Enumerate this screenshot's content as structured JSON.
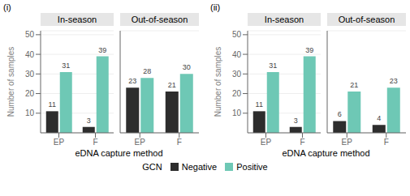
{
  "chart_data": [
    {
      "type": "bar",
      "title": "(i)",
      "xlabel": "eDNA capture method",
      "ylabel": "Number of samples",
      "facets": [
        {
          "title": "In-season",
          "categories": [
            "EP",
            "F"
          ],
          "series": [
            {
              "name": "Negative",
              "color": "#2d2d2d",
              "values": [
                11,
                3
              ]
            },
            {
              "name": "Positive",
              "color": "#6ec8b5",
              "values": [
                31,
                39
              ]
            }
          ],
          "ylim": [
            0,
            52
          ],
          "yticks": [
            10,
            20,
            30,
            40,
            50
          ],
          "data_labels": true
        },
        {
          "title": "Out-of-season",
          "categories": [
            "EP",
            "F"
          ],
          "series": [
            {
              "name": "Negative",
              "color": "#2d2d2d",
              "values": [
                23,
                21
              ]
            },
            {
              "name": "Positive",
              "color": "#6ec8b5",
              "values": [
                28,
                30
              ]
            }
          ],
          "ylim": [
            0,
            52
          ],
          "yticks": [
            10,
            20,
            30,
            40,
            50
          ],
          "data_labels": true,
          "tick_labels": "x"
        }
      ]
    },
    {
      "type": "bar",
      "title": "(ii)",
      "xlabel": "eDNA capture method",
      "ylabel": "Number of samples",
      "facets": [
        {
          "title": "In-season",
          "categories": [
            "EP",
            "F"
          ],
          "series": [
            {
              "name": "Negative",
              "color": "#2d2d2d",
              "values": [
                11,
                3
              ]
            },
            {
              "name": "Positive",
              "color": "#6ec8b5",
              "values": [
                31,
                39
              ]
            }
          ],
          "ylim": [
            0,
            52
          ],
          "yticks": [
            10,
            20,
            30,
            40,
            50
          ],
          "data_labels": true
        },
        {
          "title": "Out-of-season",
          "categories": [
            "EP",
            "F"
          ],
          "series": [
            {
              "name": "Negative",
              "color": "#2d2d2d",
              "values": [
                6,
                4
              ]
            },
            {
              "name": "Positive",
              "color": "#6ec8b5",
              "values": [
                21,
                23
              ]
            }
          ],
          "ylim": [
            0,
            52
          ],
          "yticks": [
            10,
            20,
            30,
            40,
            50
          ],
          "data_labels": true,
          "tick_labels": "x"
        }
      ]
    }
  ],
  "legend": "bottom",
  "legend_title": "GCN"
}
